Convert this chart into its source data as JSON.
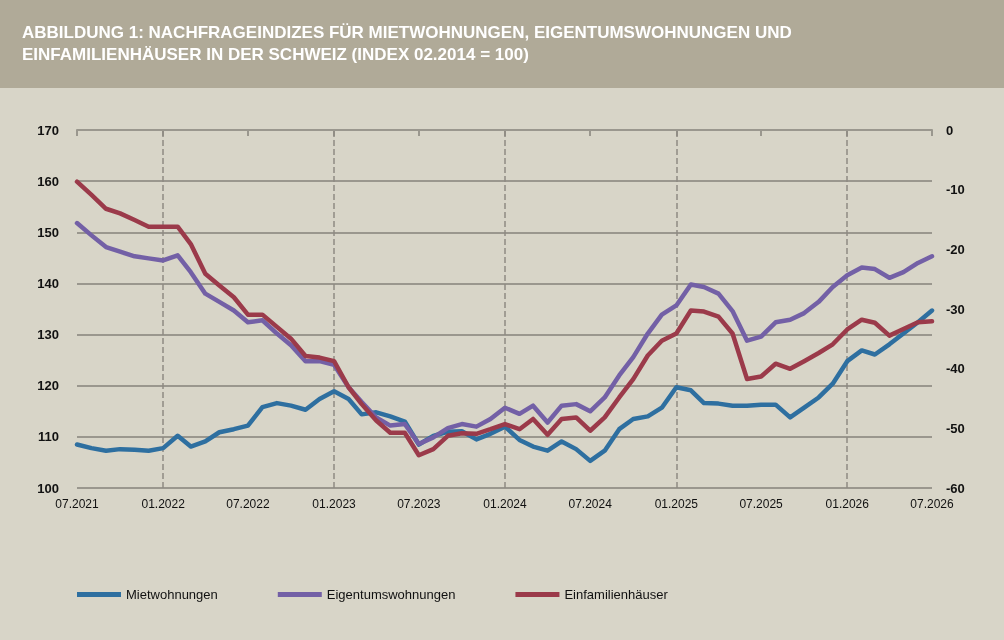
{
  "chart_data": {
    "type": "line",
    "title": "ABBILDUNG 1: NACHFRAGEINDIZES FÜR MIETWOHNUNGEN, EIGENTUMSWOHNUNGEN UND EINFAMILIENHÄUSER IN DER SCHWEIZ (INDEX 02.2014 = 100)",
    "x": [
      "2021-07",
      "2021-08",
      "2021-09",
      "2021-10",
      "2021-11",
      "2021-12",
      "2022-01",
      "2022-02",
      "2022-03",
      "2022-04",
      "2022-05",
      "2022-06",
      "2022-07",
      "2022-08",
      "2022-09",
      "2022-10",
      "2022-11",
      "2022-12",
      "2023-01",
      "2023-02",
      "2023-03",
      "2023-04",
      "2023-05",
      "2023-06",
      "2023-07",
      "2023-08",
      "2023-09",
      "2023-10",
      "2023-11",
      "2023-12",
      "2024-01",
      "2024-02",
      "2024-03",
      "2024-04",
      "2024-05",
      "2024-06",
      "2024-07",
      "2024-08",
      "2024-09",
      "2024-10",
      "2024-11",
      "2024-12",
      "2025-01",
      "2025-02",
      "2025-03",
      "2025-04",
      "2025-05",
      "2025-06",
      "2025-07",
      "2025-08",
      "2025-09",
      "2025-10",
      "2025-11",
      "2025-12",
      "2026-01",
      "2026-02",
      "2026-03",
      "2026-04",
      "2026-05",
      "2026-06",
      "2026-07"
    ],
    "series": [
      {
        "name": "Mietwohnungen",
        "color": "#2e6fa0",
        "values": [
          108.5,
          107.8,
          107.3,
          107.6,
          107.5,
          107.3,
          107.8,
          110.2,
          108.1,
          109.1,
          110.9,
          111.5,
          112.2,
          115.8,
          116.6,
          116.1,
          115.3,
          117.4,
          118.9,
          117.4,
          114.4,
          114.8,
          114.0,
          113.0,
          108.5,
          110.2,
          111.0,
          111.1,
          109.5,
          110.6,
          112.0,
          109.4,
          108.1,
          107.3,
          109.1,
          107.6,
          105.3,
          107.3,
          111.5,
          113.5,
          114.0,
          115.7,
          119.7,
          119.1,
          116.6,
          116.5,
          116.1,
          116.1,
          116.3,
          116.3,
          113.8,
          115.7,
          117.7,
          120.4,
          124.8,
          126.9,
          126.1,
          128.1,
          130.2,
          132.4,
          134.7
        ]
      },
      {
        "name": "Eigentumswohnungen",
        "color": "#7360a6",
        "values": [
          151.8,
          149.4,
          147.1,
          146.2,
          145.3,
          144.9,
          144.5,
          145.5,
          142.2,
          138.0,
          136.4,
          134.7,
          132.4,
          132.8,
          130.2,
          127.9,
          124.8,
          124.8,
          124.1,
          119.7,
          116.8,
          113.8,
          112.2,
          112.5,
          108.6,
          109.9,
          111.7,
          112.5,
          112.0,
          113.5,
          115.7,
          114.5,
          116.1,
          112.8,
          116.1,
          116.4,
          115.0,
          117.7,
          122.0,
          125.6,
          130.2,
          133.9,
          135.7,
          139.8,
          139.3,
          138.0,
          134.6,
          128.8,
          129.6,
          132.4,
          132.9,
          134.2,
          136.4,
          139.3,
          141.6,
          143.1,
          142.8,
          141.1,
          142.2,
          144.0,
          145.3
        ]
      },
      {
        "name": "Einfamilienhäuser",
        "color": "#9b3a4a",
        "values": [
          159.9,
          157.3,
          154.6,
          153.7,
          152.4,
          151.1,
          151.1,
          151.1,
          147.7,
          141.9,
          139.6,
          137.3,
          133.9,
          133.9,
          131.5,
          129.2,
          125.8,
          125.5,
          124.8,
          119.7,
          116.4,
          113.2,
          110.8,
          110.8,
          106.4,
          107.6,
          110.2,
          110.7,
          110.6,
          111.5,
          112.5,
          111.5,
          113.5,
          110.4,
          113.5,
          113.8,
          111.2,
          113.8,
          117.7,
          121.3,
          125.9,
          128.8,
          130.2,
          134.7,
          134.5,
          133.5,
          130.2,
          121.3,
          121.8,
          124.3,
          123.3,
          124.8,
          126.4,
          128.1,
          131.0,
          132.9,
          132.3,
          129.8,
          131.1,
          132.4,
          132.6
        ]
      }
    ],
    "xlim": [
      "2021-07",
      "2026-07"
    ],
    "xticks": [
      {
        "value": "2021-07",
        "label": "07.2021"
      },
      {
        "value": "2022-01",
        "label": "01.2022"
      },
      {
        "value": "2022-07",
        "label": "07.2022"
      },
      {
        "value": "2023-01",
        "label": "01.2023"
      },
      {
        "value": "2023-07",
        "label": "07.2023"
      },
      {
        "value": "2024-01",
        "label": "01.2024"
      },
      {
        "value": "2024-07",
        "label": "07.2024"
      },
      {
        "value": "2025-01",
        "label": "01.2025"
      },
      {
        "value": "2025-07",
        "label": "07.2025"
      },
      {
        "value": "2026-01",
        "label": "01.2026"
      },
      {
        "value": "2026-07",
        "label": "07.2026"
      }
    ],
    "ylim": [
      100,
      170
    ],
    "yticks": [
      100,
      110,
      120,
      130,
      140,
      150,
      160,
      170
    ],
    "y2lim": [
      -60,
      0
    ],
    "y2ticks": [
      -60,
      -50,
      -40,
      -30,
      -20,
      -10,
      0
    ],
    "ref_lines": [
      {
        "axis": "x",
        "value": "2022-01",
        "line_style": "dashed",
        "color": "#8e8b83"
      },
      {
        "axis": "x",
        "value": "2023-01",
        "line_style": "dashed",
        "color": "#8e8b83"
      },
      {
        "axis": "x",
        "value": "2024-01",
        "line_style": "dashed",
        "color": "#8e8b83"
      },
      {
        "axis": "x",
        "value": "2025-01",
        "line_style": "dashed",
        "color": "#8e8b83"
      },
      {
        "axis": "x",
        "value": "2026-01",
        "line_style": "dashed",
        "color": "#8e8b83"
      }
    ],
    "grid": "y",
    "legend": "bottom left",
    "marker": "none",
    "line_style": "solid"
  }
}
